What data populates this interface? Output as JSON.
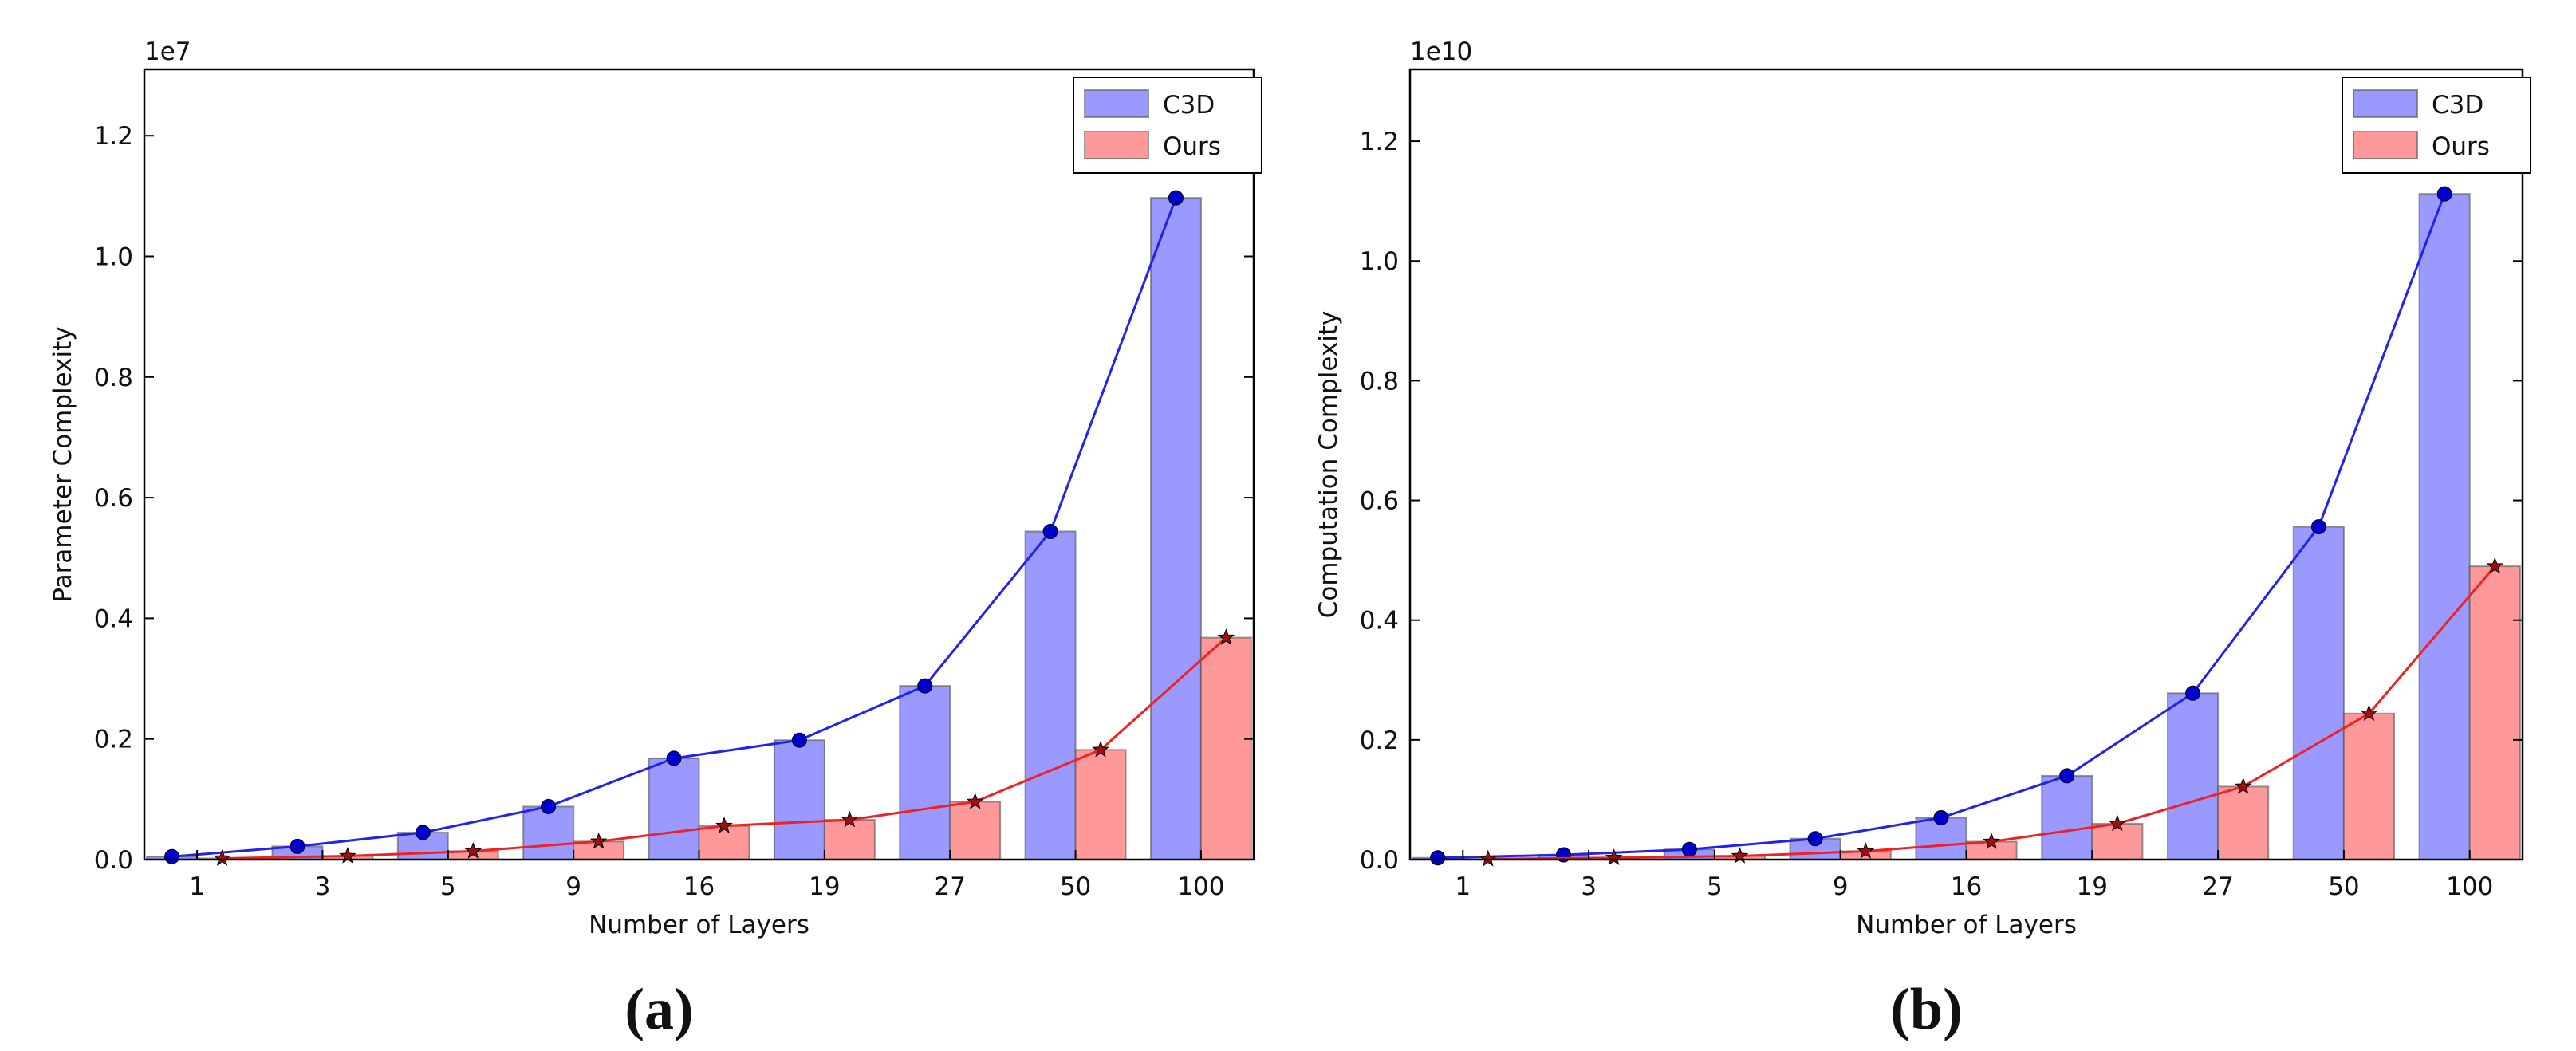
{
  "chart_data": [
    {
      "type": "bar_line",
      "caption": "(a)",
      "offset_label": "1e7",
      "x_label": "Number of Layers",
      "y_label": "Parameter Complexity",
      "categories": [
        "1",
        "3",
        "5",
        "9",
        "16",
        "19",
        "27",
        "50",
        "100"
      ],
      "series": [
        {
          "name": "C3D",
          "color": "#9999ff",
          "line_color": "#2222ee",
          "marker": "circle",
          "values": [
            0.005,
            0.022,
            0.045,
            0.088,
            0.168,
            0.198,
            0.288,
            0.544,
            1.097
          ]
        },
        {
          "name": "Ours",
          "color": "#ff9999",
          "line_color": "#ee2222",
          "marker": "star",
          "values": [
            0.002,
            0.006,
            0.014,
            0.03,
            0.056,
            0.066,
            0.096,
            0.182,
            0.368
          ]
        }
      ],
      "ylim": [
        0,
        1.31
      ],
      "yticks": [
        {
          "value": 0,
          "label": "0.0"
        },
        {
          "value": 0.2,
          "label": "0.2"
        },
        {
          "value": 0.4,
          "label": "0.4"
        },
        {
          "value": 0.6,
          "label": "0.6"
        },
        {
          "value": 0.8,
          "label": "0.8"
        },
        {
          "value": 1,
          "label": "1.0"
        },
        {
          "value": 1.2,
          "label": "1.2"
        }
      ],
      "legend": "upper right"
    },
    {
      "type": "bar_line",
      "caption": "(b)",
      "offset_label": "1e10",
      "x_label": "Number of Layers",
      "y_label": "Computation Complexity",
      "categories": [
        "1",
        "3",
        "5",
        "9",
        "16",
        "19",
        "27",
        "50",
        "100"
      ],
      "series": [
        {
          "name": "C3D",
          "color": "#9999ff",
          "line_color": "#2222ee",
          "marker": "circle",
          "values": [
            0.003,
            0.008,
            0.017,
            0.035,
            0.07,
            0.14,
            0.278,
            0.556,
            1.112
          ]
        },
        {
          "name": "Ours",
          "color": "#ff9999",
          "line_color": "#ee2222",
          "marker": "star",
          "values": [
            0.001,
            0.003,
            0.006,
            0.014,
            0.03,
            0.06,
            0.122,
            0.244,
            0.49
          ]
        }
      ],
      "ylim": [
        0,
        1.32
      ],
      "yticks": [
        {
          "value": 0,
          "label": "0.0"
        },
        {
          "value": 0.2,
          "label": "0.2"
        },
        {
          "value": 0.4,
          "label": "0.4"
        },
        {
          "value": 0.6,
          "label": "0.6"
        },
        {
          "value": 0.8,
          "label": "0.8"
        },
        {
          "value": 1,
          "label": "1.0"
        },
        {
          "value": 1.2,
          "label": "1.2"
        }
      ],
      "legend": "upper right"
    }
  ]
}
